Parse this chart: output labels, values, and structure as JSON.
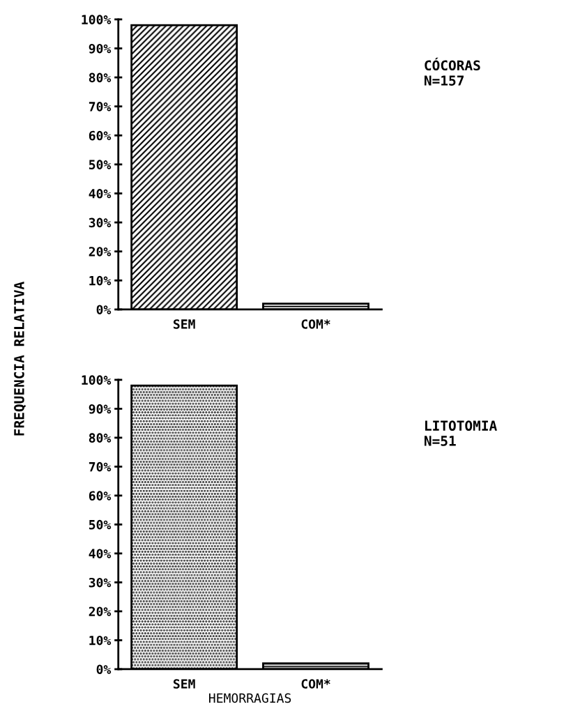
{
  "chart_data": [
    {
      "type": "bar",
      "categories": [
        "SEM",
        "COM*"
      ],
      "values": [
        98,
        2
      ],
      "colors": [
        "#000000",
        "#000000"
      ],
      "ylim": [
        0,
        100
      ],
      "yticks": [
        {
          "value": 0,
          "label": "0%"
        },
        {
          "value": 10,
          "label": "10%"
        },
        {
          "value": 20,
          "label": "20%"
        },
        {
          "value": 30,
          "label": "30%"
        },
        {
          "value": 40,
          "label": "40%"
        },
        {
          "value": 50,
          "label": "50%"
        },
        {
          "value": 60,
          "label": "60%"
        },
        {
          "value": 70,
          "label": "70%"
        },
        {
          "value": 80,
          "label": "80%"
        },
        {
          "value": 90,
          "label": "90%"
        },
        {
          "value": 100,
          "label": "100%"
        }
      ],
      "ylabel": "FREQUENCIA RELATIVA",
      "annotations": [
        "CÓCORAS\nN=157"
      ],
      "grid": false
    },
    {
      "type": "bar",
      "categories": [
        "SEM",
        "COM*"
      ],
      "values": [
        98,
        2
      ],
      "colors": [
        "#000000",
        "#000000"
      ],
      "ylim": [
        0,
        100
      ],
      "yticks": [
        {
          "value": 0,
          "label": "0%"
        },
        {
          "value": 10,
          "label": "10%"
        },
        {
          "value": 20,
          "label": "20%"
        },
        {
          "value": 30,
          "label": "30%"
        },
        {
          "value": 40,
          "label": "40%"
        },
        {
          "value": 50,
          "label": "50%"
        },
        {
          "value": 60,
          "label": "60%"
        },
        {
          "value": 70,
          "label": "70%"
        },
        {
          "value": 80,
          "label": "80%"
        },
        {
          "value": 90,
          "label": "90%"
        },
        {
          "value": 100,
          "label": "100%"
        }
      ],
      "xlabel": "HEMORRAGIAS",
      "annotations": [
        "LITOTOMIA\nN=51"
      ],
      "grid": false
    }
  ]
}
